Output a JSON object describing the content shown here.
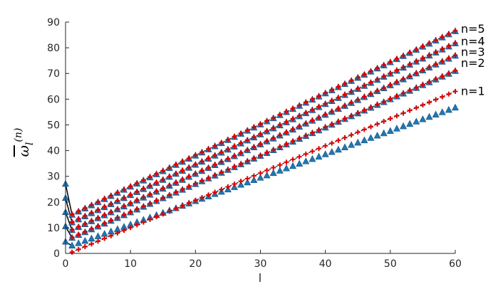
{
  "chart_data": {
    "type": "scatter",
    "title": "",
    "xlabel": "l",
    "ylabel": {
      "main": "ω",
      "sub": "l",
      "sup": "(n)"
    },
    "xlim": [
      0,
      60
    ],
    "ylim": [
      0,
      90
    ],
    "xticks": [
      "0",
      "10",
      "20",
      "30",
      "40",
      "50",
      "60"
    ],
    "yticks": [
      "0",
      "10",
      "20",
      "30",
      "40",
      "50",
      "60",
      "70",
      "80",
      "90"
    ],
    "grid": false,
    "colors": {
      "triangle": "#1f77b4",
      "plus": "#e00000",
      "curve": "#000000",
      "axis": "#262626"
    },
    "markers": {
      "triangle": "triangle",
      "plus": "plus"
    },
    "series": [
      {
        "name": "n=1",
        "l0_triangle": 4.5,
        "l1_triangle": 3.0,
        "slope_triangle": 0.91,
        "l1_plus": 0.5,
        "slope_plus": 1.06
      },
      {
        "name": "n=2",
        "l0_triangle": 10.5,
        "l1_triangle": 6.0,
        "slope_triangle": 1.1,
        "l1_plus": 6.2,
        "slope_plus": 1.1
      },
      {
        "name": "n=3",
        "l0_triangle": 16.0,
        "l1_triangle": 9.0,
        "slope_triangle": 1.15,
        "l1_plus": 9.2,
        "slope_plus": 1.15
      },
      {
        "name": "n=4",
        "l0_triangle": 21.5,
        "l1_triangle": 12.0,
        "slope_triangle": 1.18,
        "l1_plus": 12.2,
        "slope_plus": 1.18
      },
      {
        "name": "n=5",
        "l0_triangle": 27.0,
        "l1_triangle": 15.0,
        "slope_triangle": 1.21,
        "l1_plus": 15.2,
        "slope_plus": 1.21
      }
    ]
  }
}
